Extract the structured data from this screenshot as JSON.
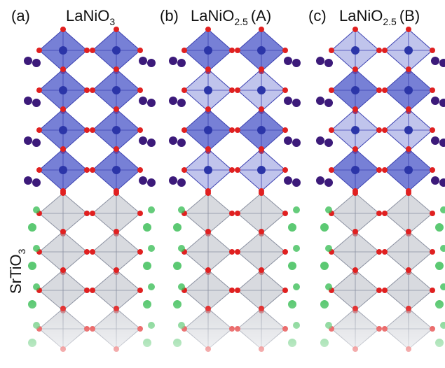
{
  "panels": [
    {
      "label": "(a)",
      "formula": "LaNiO",
      "subscript": "3"
    },
    {
      "label": "(b)",
      "formula": "LaNiO",
      "subscript": "2.5",
      "variant": "(A)"
    },
    {
      "label": "(c)",
      "formula": "LaNiO",
      "subscript": "2.5",
      "variant": "(B)"
    }
  ],
  "substrate": {
    "formula": "SrTiO",
    "subscript": "3"
  }
}
